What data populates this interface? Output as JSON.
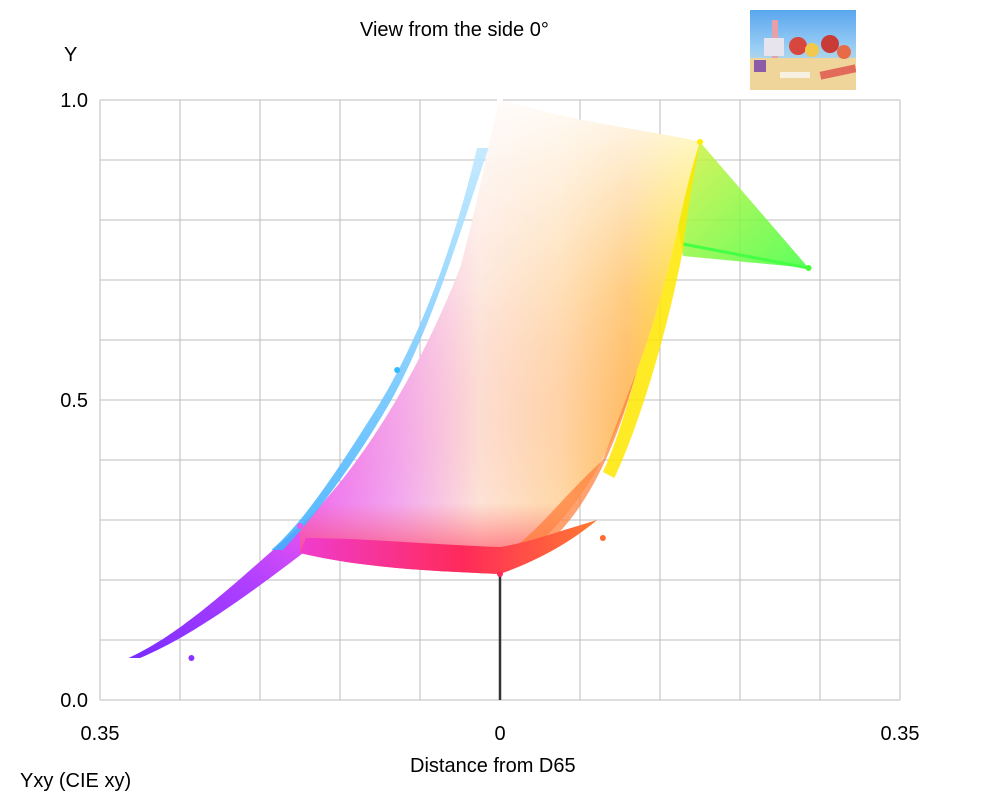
{
  "figure": {
    "title": "View from the side 0°",
    "caption": "Yxy (CIE xy)"
  },
  "chart_data": {
    "type": "scatter",
    "title": "View from the side 0°",
    "xlabel": "Distance from D65",
    "ylabel": "Y",
    "xlim": [
      -0.35,
      0.35
    ],
    "ylim": [
      0,
      1
    ],
    "x_tick_labels": [
      "0.35",
      "0",
      "0.35"
    ],
    "y_tick_labels": [
      "0.0",
      "0.5",
      "1.0"
    ],
    "grid": true,
    "thumbnail": "source-image-thumbnail",
    "gamut_boundary": {
      "x": [
        0.0,
        0.175,
        0.158,
        0.075,
        0.0,
        -0.175,
        -0.28,
        -0.32,
        -0.245,
        -0.17,
        -0.09,
        0.0
      ],
      "y": [
        1.0,
        0.93,
        0.85,
        0.6,
        0.21,
        0.24,
        0.29,
        0.07,
        0.23,
        0.45,
        0.72,
        1.0
      ]
    },
    "key_points": [
      {
        "name": "white",
        "x": 0.0,
        "y": 1.0,
        "color": "#ffffff"
      },
      {
        "name": "yellow",
        "x": 0.175,
        "y": 0.93,
        "color": "#ffee00"
      },
      {
        "name": "green",
        "x": 0.27,
        "y": 0.72,
        "color": "#44ff33"
      },
      {
        "name": "orange",
        "x": 0.09,
        "y": 0.27,
        "color": "#ff6a30"
      },
      {
        "name": "red",
        "x": 0.0,
        "y": 0.21,
        "color": "#ff2a5a"
      },
      {
        "name": "magenta",
        "x": -0.175,
        "y": 0.29,
        "color": "#ee55ee"
      },
      {
        "name": "cyan",
        "x": -0.09,
        "y": 0.55,
        "color": "#33bbff"
      },
      {
        "name": "violet",
        "x": -0.27,
        "y": 0.07,
        "color": "#8833ff"
      }
    ],
    "neutral_axis": {
      "x": 0.0,
      "y": [
        0.0,
        0.21
      ],
      "color": "#333333"
    }
  }
}
